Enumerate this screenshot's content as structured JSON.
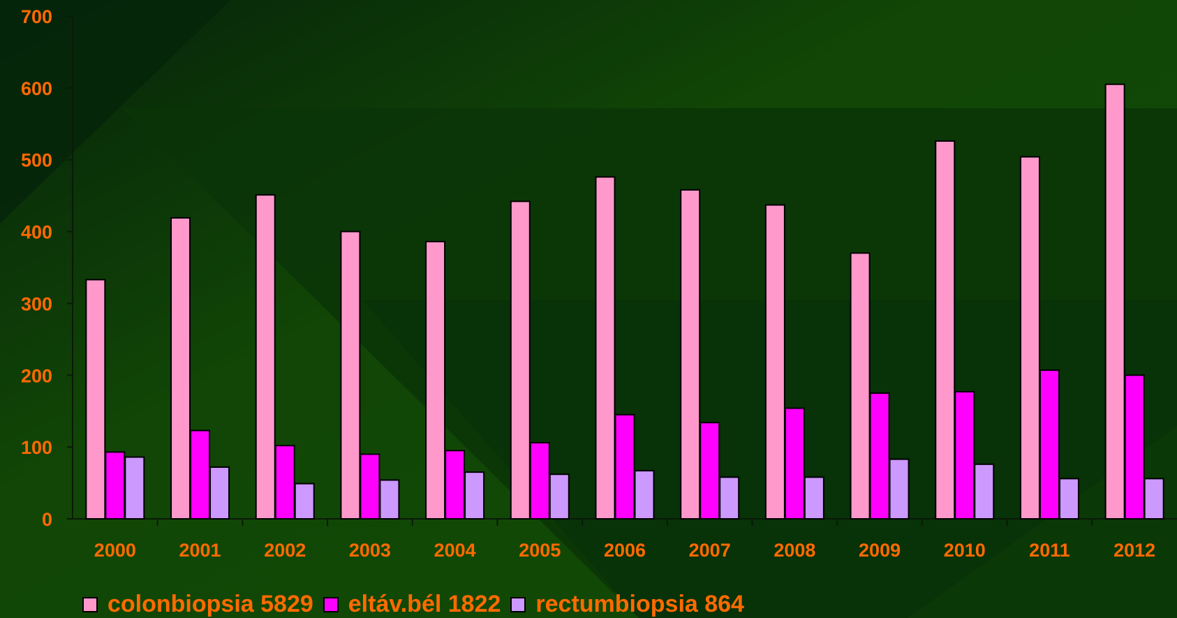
{
  "colors": {
    "background": "#124a05",
    "background_dark": "#06260a",
    "text": "#ff6a00",
    "axis": "#0a1a08"
  },
  "chart_data": {
    "type": "bar",
    "categories": [
      "2000",
      "2001",
      "2002",
      "2003",
      "2004",
      "2005",
      "2006",
      "2007",
      "2008",
      "2009",
      "2010",
      "2011",
      "2012"
    ],
    "series": [
      {
        "name": "colonbiopsia 5829",
        "color": "#ff99cc",
        "values": [
          333,
          419,
          451,
          400,
          386,
          442,
          476,
          458,
          437,
          370,
          526,
          504,
          605
        ]
      },
      {
        "name": "eltáv.bél 1822",
        "color": "#ff00ff",
        "values": [
          93,
          123,
          102,
          90,
          95,
          106,
          145,
          134,
          154,
          175,
          177,
          207,
          200
        ]
      },
      {
        "name": "rectumbiopsia 864",
        "color": "#cc99ff",
        "values": [
          86,
          72,
          49,
          54,
          65,
          62,
          67,
          58,
          58,
          83,
          76,
          56,
          56
        ]
      }
    ],
    "yticks": [
      "0",
      "100",
      "200",
      "300",
      "400",
      "500",
      "600",
      "700"
    ],
    "ylim": [
      0,
      700
    ],
    "grid": false,
    "legend_position": "bottom",
    "title": "",
    "xlabel": "",
    "ylabel": ""
  }
}
